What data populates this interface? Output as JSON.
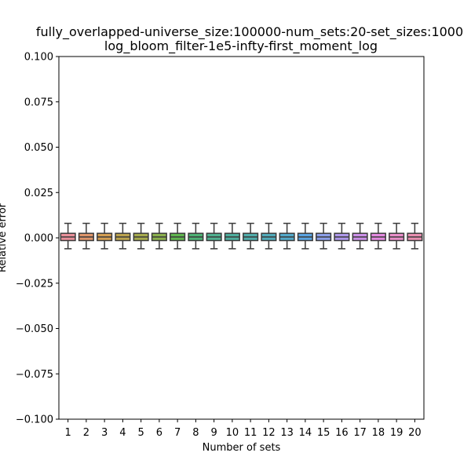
{
  "chart_data": {
    "type": "box",
    "title_lines": [
      "fully_overlapped-universe_size:100000-num_sets:20-set_sizes:1000",
      "log_bloom_filter-1e5-infty-first_moment_log"
    ],
    "xlabel": "Number of sets",
    "ylabel": "Relative error",
    "ylim": [
      -0.1,
      0.1
    ],
    "yticks": [
      0.1,
      0.075,
      0.05,
      0.025,
      0.0,
      -0.025,
      -0.05,
      -0.075,
      -0.1
    ],
    "ytick_labels": [
      "0.100",
      "0.075",
      "0.050",
      "0.025",
      "0.000",
      "−0.025",
      "−0.050",
      "−0.075",
      "−0.100"
    ],
    "categories": [
      "1",
      "2",
      "3",
      "4",
      "5",
      "6",
      "7",
      "8",
      "9",
      "10",
      "11",
      "12",
      "13",
      "14",
      "15",
      "16",
      "17",
      "18",
      "19",
      "20"
    ],
    "box_stats": {
      "whisker_low": -0.006,
      "q1": -0.0015,
      "median": 0.0005,
      "q3": 0.0025,
      "whisker_high": 0.008
    },
    "colors": [
      "#e8909a",
      "#dd956a",
      "#d39e52",
      "#bba34e",
      "#a6aa4d",
      "#8bb04d",
      "#5fb54e",
      "#4eb174",
      "#50b08f",
      "#4fae9e",
      "#51adab",
      "#52abba",
      "#54a9c9",
      "#5aa3e0",
      "#8c9fe8",
      "#ae98ea",
      "#cb90e8",
      "#e38ae0",
      "#e88ec8",
      "#e88fb0"
    ]
  }
}
